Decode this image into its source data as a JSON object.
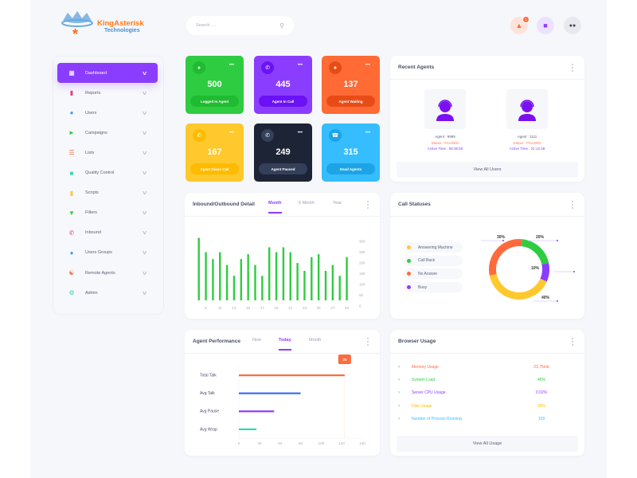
{
  "brand": {
    "name": "KingAsterisk",
    "sub": "Technologies"
  },
  "search": {
    "placeholder": "Search ....",
    "icon": "search-icon"
  },
  "header": {
    "notification_count": "1",
    "icons": [
      "bell-icon",
      "chat-icon",
      "users-icon"
    ],
    "colors": {
      "bell": "#ff6a3d",
      "chat": "#8b3dff",
      "users": "#3a3f55"
    }
  },
  "sidebar": {
    "items": [
      {
        "label": "Dashboard",
        "icon": "dashboard-icon",
        "color": "#ffffff",
        "active": true
      },
      {
        "label": "Reports",
        "icon": "reports-icon",
        "color": "#e8407a"
      },
      {
        "label": "Users",
        "icon": "users-icon",
        "color": "#3aa0ff"
      },
      {
        "label": "Campaigns",
        "icon": "megaphone-icon",
        "color": "#2ecc40"
      },
      {
        "label": "Lists",
        "icon": "list-icon",
        "color": "#ff6a3d"
      },
      {
        "label": "Quality Control",
        "icon": "chat-icon",
        "color": "#2ed8b6"
      },
      {
        "label": "Scripts",
        "icon": "script-icon",
        "color": "#ffc82c"
      },
      {
        "label": "Filters",
        "icon": "filter-icon",
        "color": "#2ecc40"
      },
      {
        "label": "Inbound",
        "icon": "phone-icon",
        "color": "#e8407a"
      },
      {
        "label": "Users Groups",
        "icon": "group-icon",
        "color": "#3aa0ff"
      },
      {
        "label": "Remote Agents",
        "icon": "remote-icon",
        "color": "#ff6a3d"
      },
      {
        "label": "Admin",
        "icon": "gear-icon",
        "color": "#2ed8b6"
      }
    ]
  },
  "stats": [
    {
      "value": "500",
      "label": "Logged In Agent",
      "color": "#2ecc40",
      "dark": "#1fbb30",
      "icon": "group-icon"
    },
    {
      "value": "445",
      "label": "Agent In Call",
      "color": "#8b3dff",
      "dark": "#6a11f5",
      "icon": "phone-incoming-icon"
    },
    {
      "value": "137",
      "label": "Agent Waiting",
      "color": "#ff6a35",
      "dark": "#e84c16",
      "icon": "user-clock-icon"
    },
    {
      "value": "167",
      "label": "Agent Dispo Call",
      "color": "#ffc82c",
      "dark": "#ffbb00",
      "icon": "phone-missed-icon"
    },
    {
      "value": "249",
      "label": "Agent Paused",
      "color": "#1d2436",
      "dark": "#34405a",
      "icon": "phone-pause-icon"
    },
    {
      "value": "315",
      "label": "Dead Agents",
      "color": "#35bdff",
      "dark": "#1ca4e6",
      "icon": "hangup-icon"
    }
  ],
  "recent_agents": {
    "title": "Recent Agents",
    "agents": [
      {
        "agent": "Agent : 9999",
        "status": "Status : PAUSED",
        "active": "Active Time : 08:38:50"
      },
      {
        "agent": "Agent : 1111",
        "status": "Status : PAUSED",
        "active": "Active Time : 21:12:28"
      }
    ],
    "button": "View All Users"
  },
  "inbound": {
    "title": "Inbound/Outbound Detail",
    "tabs": [
      "Month",
      "6 Month",
      "Year"
    ],
    "active_tab": "Month"
  },
  "call_statuses": {
    "title": "Call Statuses"
  },
  "agent_performance": {
    "title": "Agent Performance",
    "tabs": [
      "Now",
      "Today",
      "Month"
    ],
    "active_tab": "Today"
  },
  "browser_usage": {
    "title": "Browser Usage",
    "rows": [
      {
        "label": "Memory Usage",
        "value": "23.75mb",
        "color": "#ff6a3d"
      },
      {
        "label": "System Load",
        "value": "45%",
        "color": "#2ecc40"
      },
      {
        "label": "Server CPU Usage",
        "value": "0.02%",
        "color": "#8b3dff"
      },
      {
        "label": "Disk Usage",
        "value": "99%",
        "color": "#ffbb00"
      },
      {
        "label": "Number of Process Running",
        "value": "103",
        "color": "#35bdff"
      }
    ],
    "button": "View All Usage"
  },
  "chart_data": [
    {
      "type": "bar",
      "title": "Inbound/Outbound Detail",
      "x": [
        8,
        9,
        10,
        11,
        12,
        13,
        14,
        15,
        16,
        17,
        18,
        19,
        20,
        21,
        22,
        23,
        24,
        25,
        26,
        27,
        28,
        29
      ],
      "x_tick_labels": [
        "9",
        "11",
        "13",
        "15",
        "17",
        "19",
        "21",
        "23",
        "25",
        "27",
        "29"
      ],
      "values": [
        318,
        245,
        210,
        245,
        180,
        125,
        210,
        235,
        180,
        125,
        270,
        245,
        270,
        245,
        190,
        150,
        220,
        235,
        150,
        180,
        125,
        220
      ],
      "y_tick_labels": [
        "300",
        "250",
        "200",
        "150",
        "100",
        "50",
        "0"
      ],
      "ylim": [
        0,
        300
      ],
      "color": "#2ecc40",
      "grid": false
    },
    {
      "type": "pie",
      "title": "Call Statuses",
      "donut": true,
      "slices": [
        {
          "name": "Call Back",
          "value": 20,
          "label": "20%",
          "color": "#2ecc40"
        },
        {
          "name": "Busy",
          "value": 10,
          "label": "10%",
          "color": "#8b3dff"
        },
        {
          "name": "Answering Machine",
          "value": 40,
          "label": "40%",
          "color": "#ffc82c"
        },
        {
          "name": "No Answer",
          "value": 30,
          "label": "30%",
          "color": "#ff6a3d"
        }
      ],
      "legend": [
        "Answering Machine",
        "Call Back",
        "No Answer",
        "Busy"
      ],
      "legend_placement": "left"
    },
    {
      "type": "bar",
      "orientation": "horizontal",
      "title": "Agent Performance",
      "categories": [
        "Total Talk",
        "Avg Talk",
        "Avg Pause",
        "Avg Wrap"
      ],
      "values": [
        120,
        70,
        40,
        20
      ],
      "colors": [
        "#ff6a3d",
        "#3a6df0",
        "#8b3dff",
        "#2ed8b6"
      ],
      "x_tick_labels": [
        "0",
        "20",
        "40",
        "60",
        "100",
        "120",
        "140"
      ],
      "xlim": [
        0,
        140
      ],
      "tooltip": {
        "at": 120,
        "label": "25",
        "color": "#ff6a3d"
      }
    }
  ]
}
